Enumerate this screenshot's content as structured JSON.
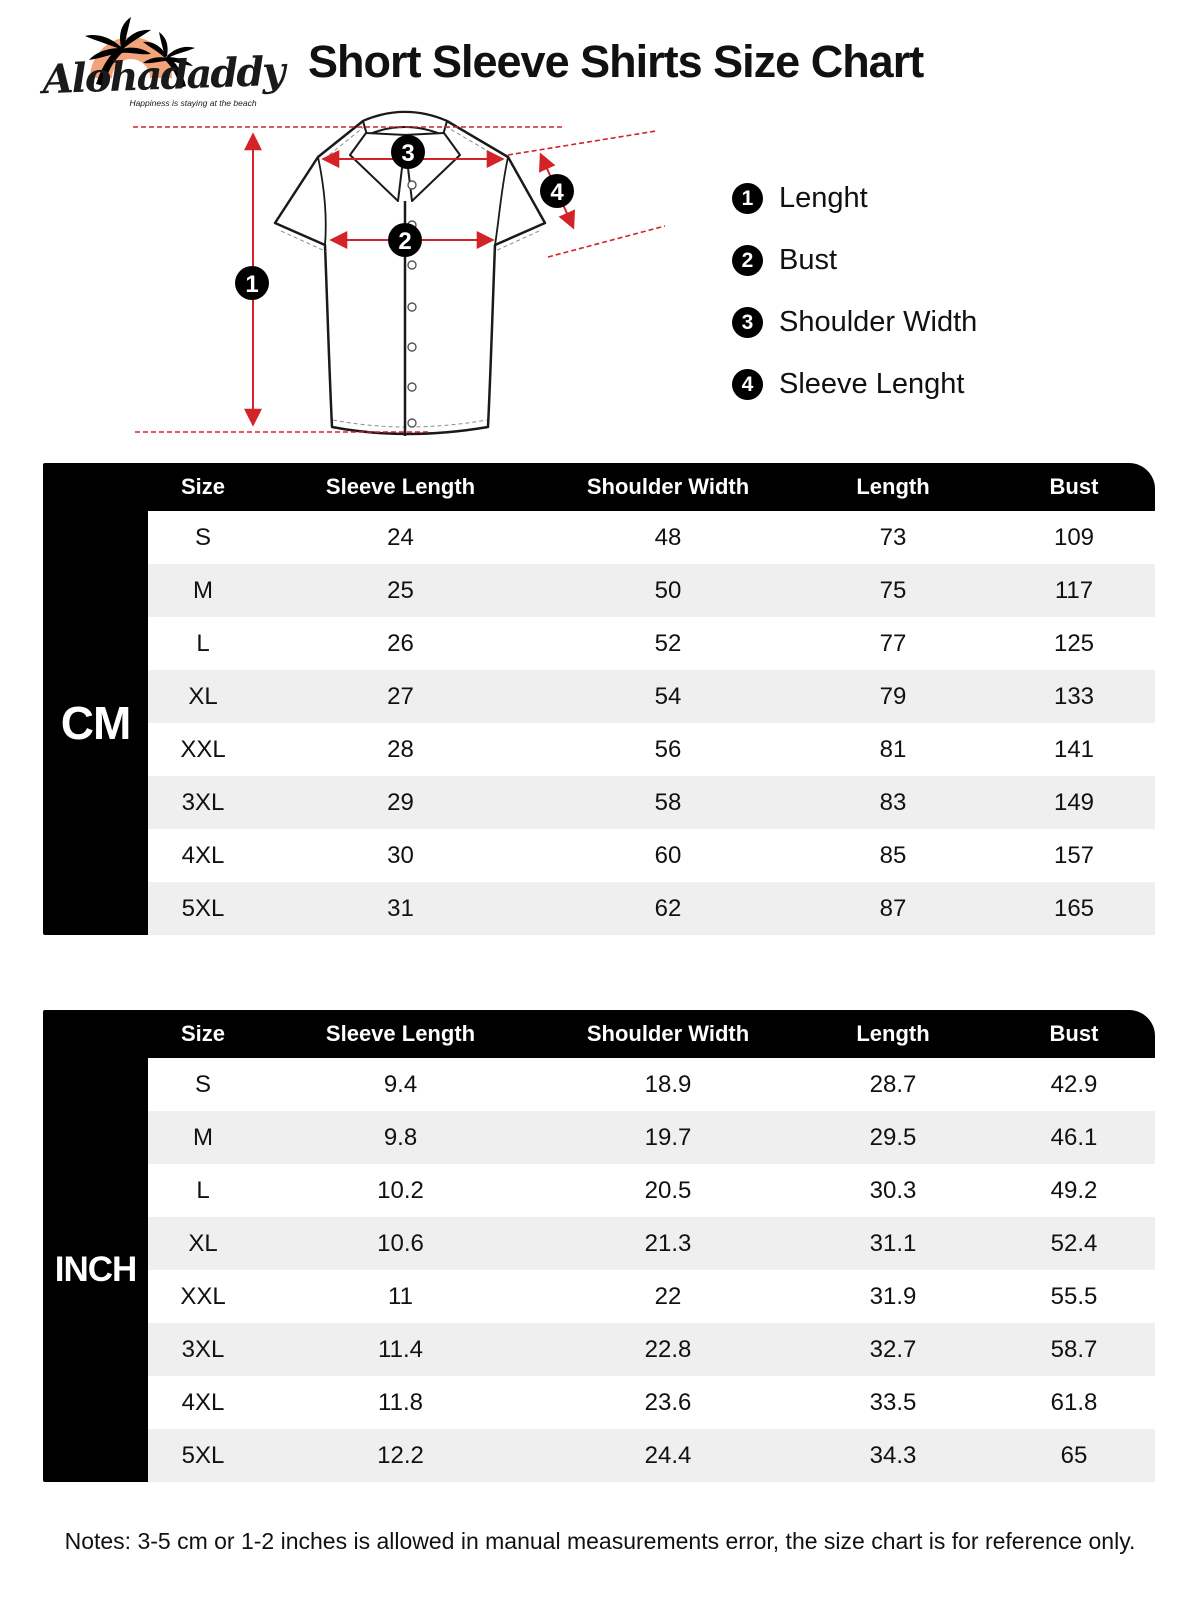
{
  "brand": {
    "name": "Alohadaddy",
    "tagline": "Happiness is staying at the beach"
  },
  "title": "Short Sleeve Shirts Size Chart",
  "legend": [
    {
      "num": "1",
      "label": "Lenght"
    },
    {
      "num": "2",
      "label": "Bust"
    },
    {
      "num": "3",
      "label": "Shoulder Width"
    },
    {
      "num": "4",
      "label": "Sleeve Lenght"
    }
  ],
  "tables": [
    {
      "unit": "CM",
      "columns": [
        "Size",
        "Sleeve Length",
        "Shoulder Width",
        "Length",
        "Bust"
      ],
      "rows": [
        [
          "S",
          "24",
          "48",
          "73",
          "109"
        ],
        [
          "M",
          "25",
          "50",
          "75",
          "117"
        ],
        [
          "L",
          "26",
          "52",
          "77",
          "125"
        ],
        [
          "XL",
          "27",
          "54",
          "79",
          "133"
        ],
        [
          "XXL",
          "28",
          "56",
          "81",
          "141"
        ],
        [
          "3XL",
          "29",
          "58",
          "83",
          "149"
        ],
        [
          "4XL",
          "30",
          "60",
          "85",
          "157"
        ],
        [
          "5XL",
          "31",
          "62",
          "87",
          "165"
        ]
      ]
    },
    {
      "unit": "INCH",
      "columns": [
        "Size",
        "Sleeve Length",
        "Shoulder Width",
        "Length",
        "Bust"
      ],
      "rows": [
        [
          "S",
          "9.4",
          "18.9",
          "28.7",
          "42.9"
        ],
        [
          "M",
          "9.8",
          "19.7",
          "29.5",
          "46.1"
        ],
        [
          "L",
          "10.2",
          "20.5",
          "30.3",
          "49.2"
        ],
        [
          "XL",
          "10.6",
          "21.3",
          "31.1",
          "52.4"
        ],
        [
          "XXL",
          "11",
          "22",
          "31.9",
          "55.5"
        ],
        [
          "3XL",
          "11.4",
          "22.8",
          "32.7",
          "58.7"
        ],
        [
          "4XL",
          "11.8",
          "23.6",
          "33.5",
          "61.8"
        ],
        [
          "5XL",
          "12.2",
          "24.4",
          "34.3",
          "65"
        ]
      ]
    }
  ],
  "notes": "Notes: 3-5 cm or 1-2 inches is allowed in manual measurements error, the size chart is for reference only.",
  "colors": {
    "accent_red": "#d32329",
    "logo_orange": "#f2a379",
    "row_alt_gray": "#efefef",
    "table_black": "#000000"
  }
}
